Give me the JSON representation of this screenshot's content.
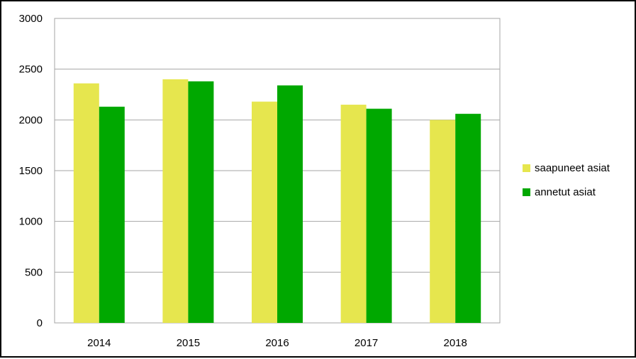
{
  "chart_data": {
    "type": "bar",
    "categories": [
      "2014",
      "2015",
      "2016",
      "2017",
      "2018"
    ],
    "series": [
      {
        "name": "saapuneet asiat",
        "color": "#e6e64e",
        "values": [
          2360,
          2400,
          2180,
          2150,
          2000
        ]
      },
      {
        "name": "annetut asiat",
        "color": "#00a800",
        "values": [
          2130,
          2380,
          2340,
          2110,
          2060
        ]
      }
    ],
    "y_ticks": [
      "0",
      "500",
      "1000",
      "1500",
      "2000",
      "2500",
      "3000"
    ],
    "ylim": [
      0,
      3000
    ],
    "grid": true,
    "legend_position": "right"
  }
}
